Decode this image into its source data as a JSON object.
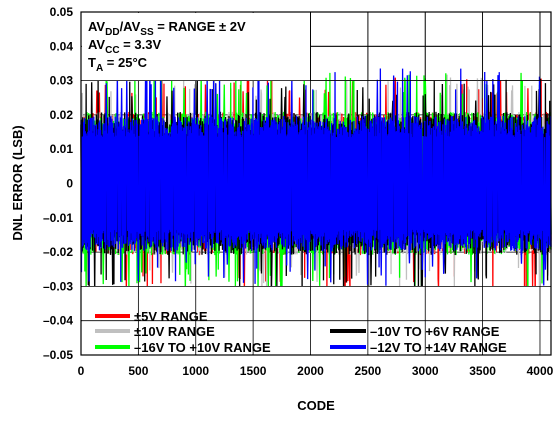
{
  "chart_data": {
    "type": "line",
    "title": "",
    "xlabel": "CODE",
    "ylabel": "DNL ERROR (LSB)",
    "xlim": [
      0,
      4096
    ],
    "ylim": [
      -0.05,
      0.05
    ],
    "x_ticks": [
      "0",
      "500",
      "1000",
      "1500",
      "2000",
      "2500",
      "3000",
      "3500",
      "4000"
    ],
    "y_ticks": [
      "0.05",
      "0.04",
      "0.03",
      "0.02",
      "0.01",
      "0",
      "–0.01",
      "–0.02",
      "–0.03",
      "–0.04",
      "–0.05"
    ],
    "grid": true,
    "conditions": {
      "line1": {
        "prefix": "AV",
        "sub1": "DD",
        "mid": "/AV",
        "sub2": "SS",
        "suffix": " = RANGE ± 2V"
      },
      "line2": {
        "prefix": "AV",
        "sub1": "CC",
        "suffix": " = 3.3V"
      },
      "line3": {
        "prefix": "T",
        "sub1": "A",
        "suffix": " = 25°C"
      }
    },
    "legend_position": "bottom",
    "series": [
      {
        "name": "±5V RANGE",
        "color": "#ff0000",
        "typical_band": [
          -0.019,
          0.019
        ],
        "peak": [
          -0.034,
          0.031
        ]
      },
      {
        "name": "±10V RANGE",
        "color": "#c0c0c0",
        "typical_band": [
          -0.019,
          0.019
        ],
        "peak": [
          -0.031,
          0.032
        ]
      },
      {
        "name": "–16V TO +10V RANGE",
        "color": "#00ff00",
        "typical_band": [
          -0.019,
          0.019
        ],
        "peak": [
          -0.032,
          0.033
        ]
      },
      {
        "name": "–10V TO +6V RANGE",
        "color": "#000000",
        "typical_band": [
          -0.019,
          0.019
        ],
        "peak": [
          -0.033,
          0.031
        ]
      },
      {
        "name": "–12V TO +14V RANGE",
        "color": "#0000ff",
        "typical_band": [
          -0.018,
          0.018
        ],
        "peak": [
          -0.03,
          0.034
        ]
      }
    ]
  }
}
